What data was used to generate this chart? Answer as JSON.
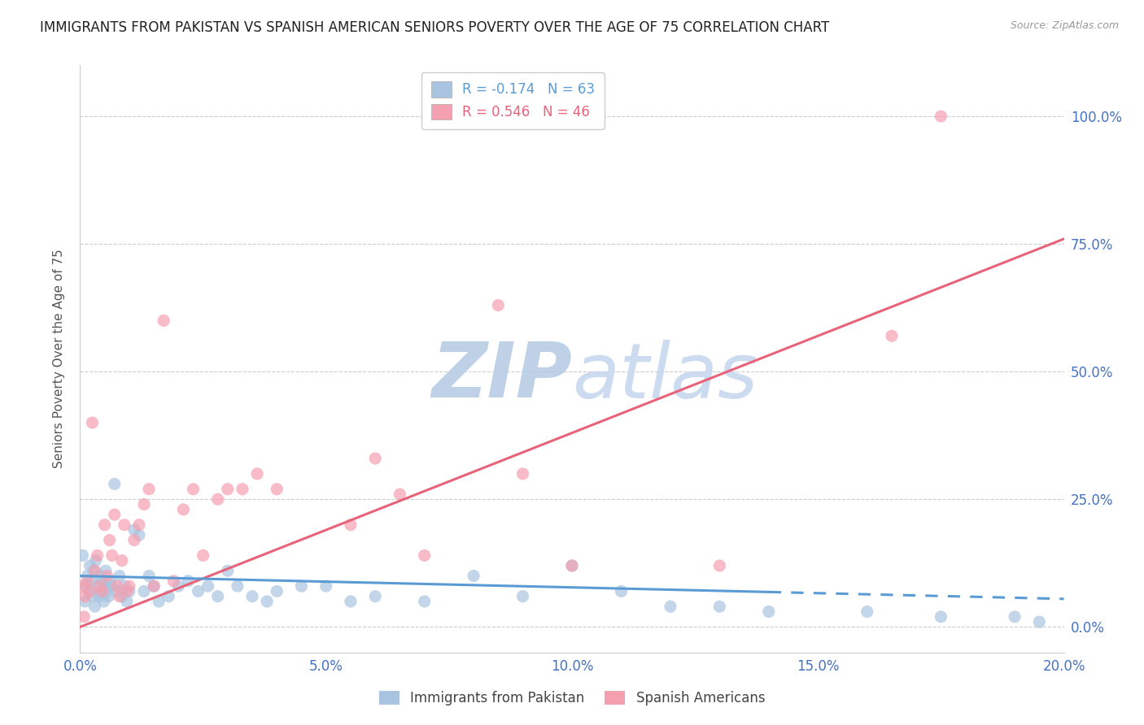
{
  "title": "IMMIGRANTS FROM PAKISTAN VS SPANISH AMERICAN SENIORS POVERTY OVER THE AGE OF 75 CORRELATION CHART",
  "source": "Source: ZipAtlas.com",
  "xlabel_ticks": [
    "0.0%",
    "5.0%",
    "10.0%",
    "15.0%",
    "20.0%"
  ],
  "xlabel_vals": [
    0.0,
    5.0,
    10.0,
    15.0,
    20.0
  ],
  "ylabel_ticks": [
    "0.0%",
    "25.0%",
    "50.0%",
    "75.0%",
    "100.0%"
  ],
  "ylabel_vals": [
    0.0,
    25.0,
    50.0,
    75.0,
    100.0
  ],
  "xlim": [
    0.0,
    20.0
  ],
  "ylim": [
    -5.0,
    110.0
  ],
  "pakistan_R": -0.174,
  "pakistan_N": 63,
  "spanish_R": 0.546,
  "spanish_N": 46,
  "pakistan_color": "#a8c4e0",
  "spanish_color": "#f4a0b0",
  "pakistan_line_color": "#5b9bd5",
  "spanish_line_color": "#e8637a",
  "watermark_color": "#c8d8ef",
  "title_fontsize": 12,
  "axis_label_color": "#4472c4",
  "ylabel": "Seniors Poverty Over the Age of 75",
  "pakistan_scatter_x": [
    0.05,
    0.1,
    0.12,
    0.15,
    0.18,
    0.2,
    0.22,
    0.25,
    0.28,
    0.3,
    0.32,
    0.35,
    0.38,
    0.4,
    0.42,
    0.45,
    0.48,
    0.5,
    0.52,
    0.55,
    0.58,
    0.6,
    0.65,
    0.7,
    0.75,
    0.8,
    0.85,
    0.9,
    0.95,
    1.0,
    1.1,
    1.2,
    1.3,
    1.4,
    1.5,
    1.6,
    1.8,
    2.0,
    2.2,
    2.4,
    2.6,
    2.8,
    3.0,
    3.2,
    3.5,
    3.8,
    4.0,
    4.5,
    5.0,
    5.5,
    6.0,
    7.0,
    8.0,
    9.0,
    10.0,
    11.0,
    12.0,
    13.0,
    14.0,
    16.0,
    17.5,
    19.0,
    19.5
  ],
  "pakistan_scatter_y": [
    14.0,
    5.0,
    8.0,
    10.0,
    7.0,
    12.0,
    9.0,
    6.0,
    11.0,
    4.0,
    13.0,
    8.0,
    6.0,
    10.0,
    7.0,
    9.0,
    5.0,
    8.0,
    11.0,
    7.0,
    6.0,
    9.0,
    8.0,
    28.0,
    7.0,
    10.0,
    6.0,
    8.0,
    5.0,
    7.0,
    19.0,
    18.0,
    7.0,
    10.0,
    8.0,
    5.0,
    6.0,
    8.0,
    9.0,
    7.0,
    8.0,
    6.0,
    11.0,
    8.0,
    6.0,
    5.0,
    7.0,
    8.0,
    8.0,
    5.0,
    6.0,
    5.0,
    10.0,
    6.0,
    12.0,
    7.0,
    4.0,
    4.0,
    3.0,
    3.0,
    2.0,
    2.0,
    1.0
  ],
  "spanish_scatter_x": [
    0.05,
    0.1,
    0.15,
    0.2,
    0.25,
    0.3,
    0.35,
    0.4,
    0.45,
    0.5,
    0.55,
    0.6,
    0.65,
    0.7,
    0.75,
    0.8,
    0.85,
    0.9,
    0.95,
    1.0,
    1.1,
    1.2,
    1.3,
    1.4,
    1.5,
    1.7,
    1.9,
    2.1,
    2.3,
    2.5,
    2.8,
    3.0,
    3.3,
    3.6,
    4.0,
    5.5,
    6.0,
    6.5,
    7.0,
    8.5,
    9.0,
    10.0,
    13.0,
    16.5,
    17.5,
    0.08
  ],
  "spanish_scatter_y": [
    8.0,
    6.0,
    9.0,
    7.0,
    40.0,
    11.0,
    14.0,
    8.0,
    7.0,
    20.0,
    10.0,
    17.0,
    14.0,
    22.0,
    8.0,
    6.0,
    13.0,
    20.0,
    7.0,
    8.0,
    17.0,
    20.0,
    24.0,
    27.0,
    8.0,
    60.0,
    9.0,
    23.0,
    27.0,
    14.0,
    25.0,
    27.0,
    27.0,
    30.0,
    27.0,
    20.0,
    33.0,
    26.0,
    14.0,
    63.0,
    30.0,
    12.0,
    12.0,
    57.0,
    100.0,
    2.0
  ],
  "pk_trend_x": [
    0.0,
    20.0
  ],
  "pk_trend_y": [
    10.0,
    5.5
  ],
  "sp_trend_x": [
    0.0,
    20.0
  ],
  "sp_trend_y": [
    0.0,
    76.0
  ],
  "pk_trend_dashed_start": 14.0
}
